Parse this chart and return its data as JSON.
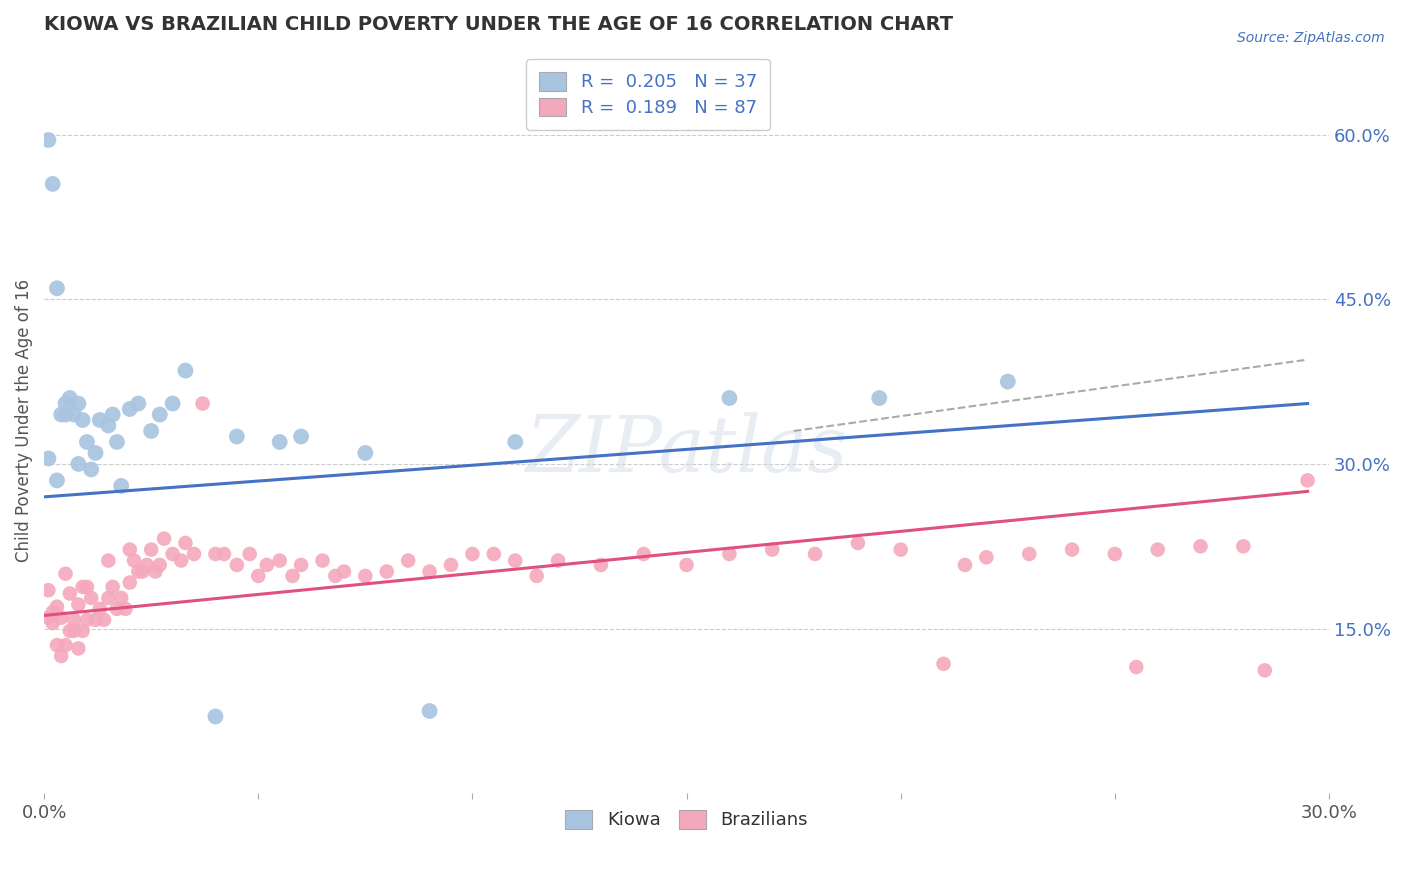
{
  "title": "KIOWA VS BRAZILIAN CHILD POVERTY UNDER THE AGE OF 16 CORRELATION CHART",
  "ylabel": "Child Poverty Under the Age of 16",
  "source_text": "Source: ZipAtlas.com",
  "xlim": [
    0.0,
    0.3
  ],
  "ylim": [
    0.0,
    0.68
  ],
  "yticks_right": [
    0.15,
    0.3,
    0.45,
    0.6
  ],
  "ytick_labels_right": [
    "15.0%",
    "30.0%",
    "45.0%",
    "60.0%"
  ],
  "kiowa_R": 0.205,
  "kiowa_N": 37,
  "brazilian_R": 0.189,
  "brazilian_N": 87,
  "kiowa_color": "#a8c4e0",
  "kiowa_line_color": "#4472c4",
  "brazilian_color": "#f4a8bc",
  "brazilian_line_color": "#e05080",
  "watermark_color": "#d0dce8",
  "background_color": "#ffffff",
  "kiowa_x": [
    0.001,
    0.002,
    0.003,
    0.004,
    0.005,
    0.005,
    0.006,
    0.007,
    0.008,
    0.009,
    0.01,
    0.011,
    0.012,
    0.013,
    0.015,
    0.016,
    0.017,
    0.018,
    0.02,
    0.022,
    0.025,
    0.027,
    0.03,
    0.033,
    0.04,
    0.045,
    0.055,
    0.06,
    0.075,
    0.09,
    0.11,
    0.16,
    0.195,
    0.225,
    0.001,
    0.003,
    0.008
  ],
  "kiowa_y": [
    0.595,
    0.555,
    0.46,
    0.345,
    0.345,
    0.355,
    0.36,
    0.345,
    0.355,
    0.34,
    0.32,
    0.295,
    0.31,
    0.34,
    0.335,
    0.345,
    0.32,
    0.28,
    0.35,
    0.355,
    0.33,
    0.345,
    0.355,
    0.385,
    0.07,
    0.325,
    0.32,
    0.325,
    0.31,
    0.075,
    0.32,
    0.36,
    0.36,
    0.375,
    0.305,
    0.285,
    0.3
  ],
  "brazilian_x": [
    0.001,
    0.001,
    0.002,
    0.002,
    0.003,
    0.003,
    0.004,
    0.004,
    0.005,
    0.005,
    0.006,
    0.006,
    0.007,
    0.007,
    0.008,
    0.008,
    0.009,
    0.009,
    0.01,
    0.01,
    0.011,
    0.012,
    0.013,
    0.014,
    0.015,
    0.015,
    0.016,
    0.017,
    0.018,
    0.019,
    0.02,
    0.02,
    0.021,
    0.022,
    0.023,
    0.024,
    0.025,
    0.026,
    0.027,
    0.028,
    0.03,
    0.032,
    0.033,
    0.035,
    0.037,
    0.04,
    0.042,
    0.045,
    0.048,
    0.05,
    0.052,
    0.055,
    0.058,
    0.06,
    0.065,
    0.068,
    0.07,
    0.075,
    0.08,
    0.085,
    0.09,
    0.095,
    0.1,
    0.105,
    0.11,
    0.115,
    0.12,
    0.13,
    0.14,
    0.15,
    0.16,
    0.17,
    0.18,
    0.19,
    0.2,
    0.21,
    0.215,
    0.22,
    0.23,
    0.24,
    0.25,
    0.255,
    0.26,
    0.27,
    0.28,
    0.285,
    0.295
  ],
  "brazilian_y": [
    0.185,
    0.16,
    0.165,
    0.155,
    0.135,
    0.17,
    0.125,
    0.16,
    0.135,
    0.2,
    0.148,
    0.182,
    0.148,
    0.158,
    0.132,
    0.172,
    0.148,
    0.188,
    0.158,
    0.188,
    0.178,
    0.158,
    0.168,
    0.158,
    0.178,
    0.212,
    0.188,
    0.168,
    0.178,
    0.168,
    0.192,
    0.222,
    0.212,
    0.202,
    0.202,
    0.208,
    0.222,
    0.202,
    0.208,
    0.232,
    0.218,
    0.212,
    0.228,
    0.218,
    0.355,
    0.218,
    0.218,
    0.208,
    0.218,
    0.198,
    0.208,
    0.212,
    0.198,
    0.208,
    0.212,
    0.198,
    0.202,
    0.198,
    0.202,
    0.212,
    0.202,
    0.208,
    0.218,
    0.218,
    0.212,
    0.198,
    0.212,
    0.208,
    0.218,
    0.208,
    0.218,
    0.222,
    0.218,
    0.228,
    0.222,
    0.118,
    0.208,
    0.215,
    0.218,
    0.222,
    0.218,
    0.115,
    0.222,
    0.225,
    0.225,
    0.112,
    0.285
  ],
  "kiowa_trend_x": [
    0.0,
    0.295
  ],
  "kiowa_trend_y": [
    0.27,
    0.355
  ],
  "brazilian_trend_x": [
    0.0,
    0.295
  ],
  "brazilian_trend_y": [
    0.162,
    0.275
  ],
  "dash_trend_x": [
    0.175,
    0.295
  ],
  "dash_trend_y": [
    0.33,
    0.395
  ]
}
